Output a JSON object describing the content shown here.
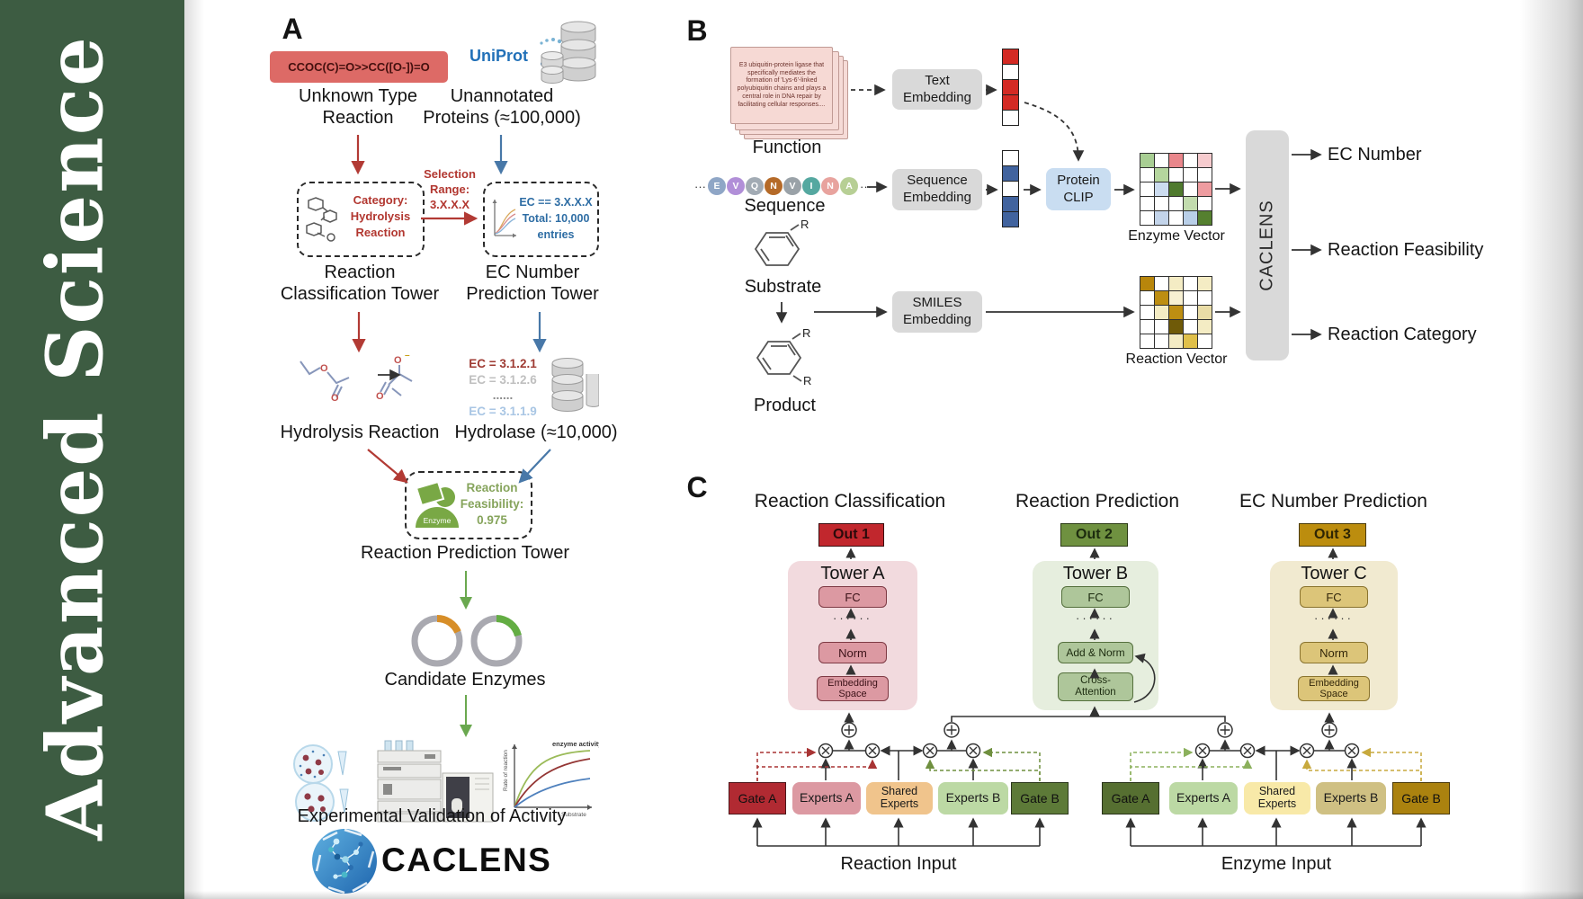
{
  "journal": {
    "name": "Advanced  Science"
  },
  "colors": {
    "sidebar_green": "#3d5c42",
    "red_accent": "#b23a34",
    "blue_accent": "#4878a8",
    "green_accent": "#6aa84f",
    "gold_accent": "#bc8d0e",
    "uniprot_blue": "#2170b8"
  },
  "panelA": {
    "label": "A",
    "smiles": "CCOC(C)=O>>CC([O-])=O",
    "unknown_reaction": "Unknown Type\nReaction",
    "uniprot": "UniProt",
    "unannotated_proteins": "Unannotated\nProteins (≈100,000)",
    "selection_range": "Selection\nRange:\n3.X.X.X",
    "category": "Category:\nHydrolysis\nReaction",
    "ec_filter": "EC == 3.X.X.X\nTotal: 10,000\nentries",
    "reaction_classification_tower": "Reaction\nClassification Tower",
    "ec_number_prediction_tower": "EC Number\nPrediction Tower",
    "ec_list": [
      {
        "text": "EC = 3.1.2.1",
        "color": "#9e3a32"
      },
      {
        "text": "EC = 3.1.2.6",
        "color": "#bfbfbf"
      },
      {
        "text": "......",
        "color": "#8a8a8a"
      },
      {
        "text": "EC = 3.1.1.9",
        "color": "#a9c6e4"
      }
    ],
    "hydrolysis_reaction": "Hydrolysis Reaction",
    "hydrolase": "Hydrolase (≈10,000)",
    "enzyme_badge": "Enzyme",
    "reaction_feasibility": "Reaction\nFeasibility:\n0.975",
    "reaction_prediction_tower": "Reaction Prediction Tower",
    "candidate_enzymes": "Candidate Enzymes",
    "experimental_validation": "Experimental Validation of Activity",
    "brand": "CACLENS",
    "kinetics": {
      "annotation": "enzyme activity",
      "ylabel": "Rate of reaction",
      "xlabel": "Substrate"
    }
  },
  "panelB": {
    "label": "B",
    "function_text": "E3 ubiquitin-protein ligase that specifically mediates the formation of 'Lys-6'-linked polyubiquitin chains and plays a central role in DNA repair by facilitating cellular responses....",
    "function_label": "Function",
    "ellipsis": "···",
    "sequence_chips": [
      {
        "t": "E",
        "c": "#8fa6c6"
      },
      {
        "t": "V",
        "c": "#b18fd8"
      },
      {
        "t": "Q",
        "c": "#a2abb4"
      },
      {
        "t": "N",
        "c": "#b56a28"
      },
      {
        "t": "V",
        "c": "#9aa2a8"
      },
      {
        "t": "I",
        "c": "#55a8a0"
      },
      {
        "t": "N",
        "c": "#e8a39e"
      },
      {
        "t": "A",
        "c": "#b7cf95"
      }
    ],
    "sequence_label": "Sequence",
    "substrate_label": "Substrate",
    "product_label": "Product",
    "r_group": "R",
    "text_embedding": "Text\nEmbedding",
    "sequence_embedding": "Sequence\nEmbedding",
    "smiles_embedding": "SMILES\nEmbedding",
    "protein_clip": "Protein\nCLIP",
    "text_vector": [
      "#d42a24",
      "#ffffff",
      "#d42a24",
      "#d42a24",
      "#ffffff"
    ],
    "sequence_vector": [
      "#ffffff",
      "#41639e",
      "#ffffff",
      "#41639e",
      "#41639e"
    ],
    "enzyme_grid": [
      [
        "#a8ce93",
        "#ffffff",
        "#e9868b",
        "#ffffff",
        "#f6cbce"
      ],
      [
        "#ffffff",
        "#b5d69e",
        "#ffffff",
        "#ffffff",
        "#ffffff"
      ],
      [
        "#ffffff",
        "#ccdcf0",
        "#4f7a2e",
        "#ffffff",
        "#ee9ca0"
      ],
      [
        "#ffffff",
        "#ffffff",
        "#ffffff",
        "#c2dcae",
        "#ffffff"
      ],
      [
        "#ffffff",
        "#c3d4ea",
        "#ffffff",
        "#b9cfe8",
        "#55802f"
      ]
    ],
    "reaction_grid": [
      [
        "#b8860b",
        "#ffffff",
        "#f4ecc4",
        "#ffffff",
        "#f4ecc4"
      ],
      [
        "#ffffff",
        "#bd8e12",
        "#f7f0d2",
        "#ffffff",
        "#ffffff"
      ],
      [
        "#ffffff",
        "#f4ecc4",
        "#bd8e12",
        "#ffffff",
        "#e9dca6"
      ],
      [
        "#ffffff",
        "#ffffff",
        "#6f5a08",
        "#ffffff",
        "#f4ecc4"
      ],
      [
        "#ffffff",
        "#ffffff",
        "#f4ecc4",
        "#e0c04a",
        "#ffffff"
      ]
    ],
    "enzyme_vector_label": "Enzyme Vector",
    "reaction_vector_label": "Reaction Vector",
    "caclens": "CACLENS",
    "outputs": [
      "EC Number",
      "Reaction Feasibility",
      "Reaction Category"
    ]
  },
  "panelC": {
    "label": "C",
    "sections": [
      {
        "title": "Reaction Classification"
      },
      {
        "title": "Reaction Prediction"
      },
      {
        "title": "EC Number Prediction"
      }
    ],
    "towers": [
      {
        "out": "Out 1",
        "title": "Tower A",
        "fc": "FC",
        "dots": "······",
        "mid": "Norm",
        "bottom": "Embedding\nSpace"
      },
      {
        "out": "Out 2",
        "title": "Tower B",
        "fc": "FC",
        "dots": "······",
        "mid": "Add & Norm",
        "bottom": "Cross-\nAttention"
      },
      {
        "out": "Out 3",
        "title": "Tower C",
        "fc": "FC",
        "dots": "······",
        "mid": "Norm",
        "bottom": "Embedding\nSpace"
      }
    ],
    "moe": [
      {
        "gate_a": "Gate A",
        "experts_a": "Experts A",
        "shared": "Shared\nExperts",
        "experts_b": "Experts B",
        "gate_b": "Gate B",
        "input": "Reaction Input"
      },
      {
        "gate_a": "Gate A",
        "experts_a": "Experts A",
        "shared": "Shared\nExperts",
        "experts_b": "Experts B",
        "gate_b": "Gate B",
        "input": "Enzyme Input"
      }
    ]
  }
}
